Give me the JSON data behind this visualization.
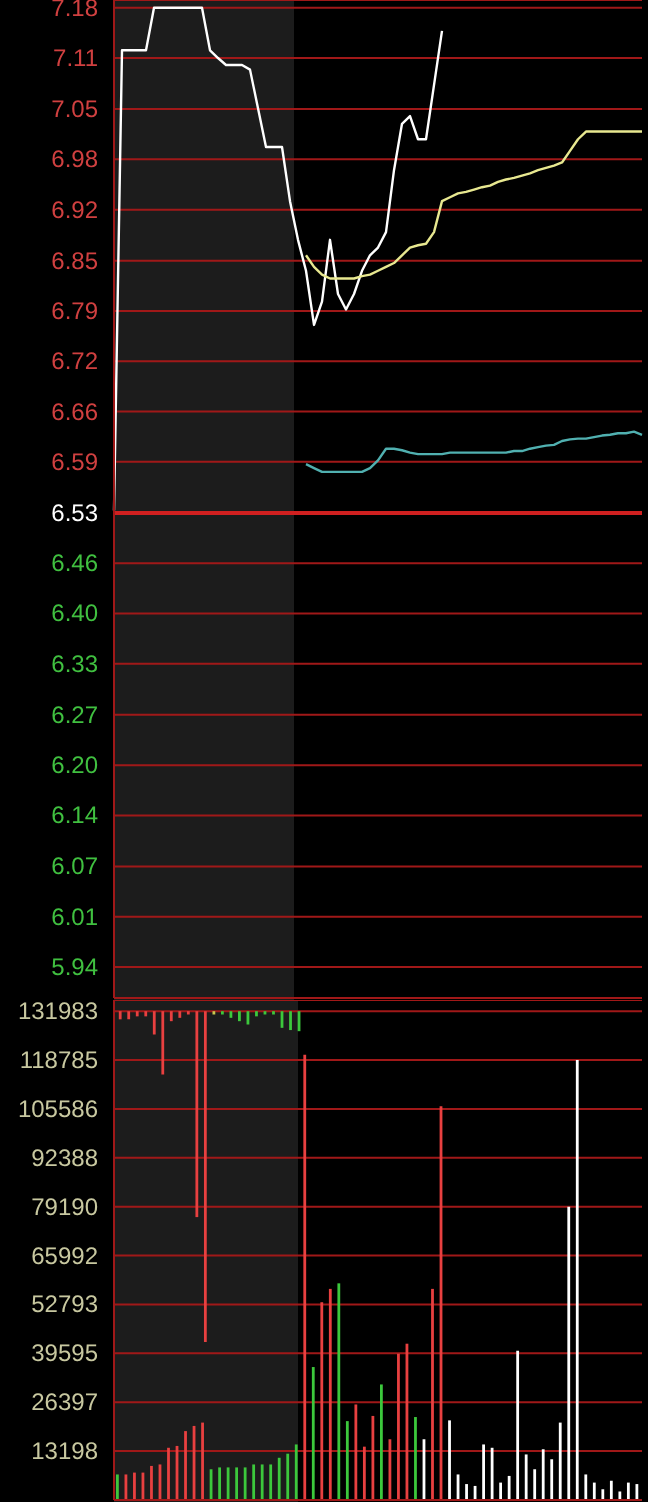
{
  "chart_data": [
    {
      "type": "line",
      "ylim": [
        5.9,
        7.19
      ],
      "grid": "y",
      "tick_labels": "y",
      "categories": [
        null,
        null,
        null,
        null,
        null,
        null,
        null,
        null,
        null,
        null,
        null,
        null,
        null,
        null,
        null,
        null,
        null,
        null,
        null,
        null,
        null,
        null,
        null,
        null,
        null,
        null,
        null,
        null,
        null,
        null,
        null,
        null,
        null,
        null,
        null,
        null,
        null,
        null,
        null,
        null,
        null,
        null,
        null,
        null,
        null,
        null,
        null,
        null,
        null,
        null,
        null,
        null,
        null,
        null,
        null,
        null,
        null,
        null,
        null,
        null,
        null,
        null,
        null,
        null,
        null,
        null,
        null
      ],
      "yticks": [
        {
          "value": 7.18,
          "label": "7.18"
        },
        {
          "value": 7.115,
          "label": "7.11"
        },
        {
          "value": 7.049,
          "label": "7.05"
        },
        {
          "value": 6.984,
          "label": "6.98"
        },
        {
          "value": 6.919,
          "label": "6.92"
        },
        {
          "value": 6.853,
          "label": "6.85"
        },
        {
          "value": 6.788,
          "label": "6.79"
        },
        {
          "value": 6.723,
          "label": "6.72"
        },
        {
          "value": 6.658,
          "label": "6.66"
        },
        {
          "value": 6.593,
          "label": "6.59"
        },
        {
          "value": 6.527,
          "label": "6.53"
        },
        {
          "value": 6.462,
          "label": "6.46"
        },
        {
          "value": 6.397,
          "label": "6.40"
        },
        {
          "value": 6.332,
          "label": "6.33"
        },
        {
          "value": 6.266,
          "label": "6.27"
        },
        {
          "value": 6.201,
          "label": "6.20"
        },
        {
          "value": 6.136,
          "label": "6.14"
        },
        {
          "value": 6.07,
          "label": "6.07"
        },
        {
          "value": 6.005,
          "label": "6.01"
        },
        {
          "value": 5.94,
          "label": "5.94"
        }
      ],
      "ref_lines": [
        {
          "axis": "y",
          "value": 6.527,
          "color": "#d02020"
        }
      ],
      "series": [
        {
          "color": "#ffffff",
          "values": [
            6.53,
            7.125,
            7.125,
            7.125,
            7.125,
            7.18,
            7.18,
            7.18,
            7.18,
            7.18,
            7.18,
            7.18,
            7.125,
            7.115,
            7.106,
            7.106,
            7.106,
            7.1,
            7.05,
            7.0,
            7.0,
            7.0,
            6.93,
            6.88,
            6.84,
            6.77,
            6.8,
            6.88,
            6.81,
            6.79,
            6.81,
            6.84,
            6.86,
            6.87,
            6.89,
            6.97,
            7.03,
            7.04,
            7.01,
            7.01,
            7.08,
            7.15,
            null,
            null,
            null,
            null,
            null,
            null,
            null,
            null,
            null,
            null,
            null,
            null,
            null,
            null,
            null,
            null,
            null,
            null,
            null,
            null,
            null,
            null,
            null,
            null,
            null
          ]
        },
        {
          "color": "#e8e890",
          "values": [
            null,
            null,
            null,
            null,
            null,
            null,
            null,
            null,
            null,
            null,
            null,
            null,
            null,
            null,
            null,
            null,
            null,
            null,
            null,
            null,
            null,
            null,
            null,
            null,
            6.86,
            6.845,
            6.835,
            6.83,
            6.83,
            6.83,
            6.83,
            6.833,
            6.835,
            6.84,
            6.845,
            6.85,
            6.86,
            6.87,
            6.873,
            6.875,
            6.89,
            6.93,
            6.935,
            6.94,
            6.942,
            6.945,
            6.948,
            6.95,
            6.955,
            6.958,
            6.96,
            6.963,
            6.966,
            6.97,
            6.973,
            6.976,
            6.98,
            6.995,
            7.01,
            7.02,
            7.02,
            7.02,
            7.02,
            7.02,
            7.02,
            7.02,
            7.02
          ]
        },
        {
          "color": "#50b0b0",
          "values": [
            null,
            null,
            null,
            null,
            null,
            null,
            null,
            null,
            null,
            null,
            null,
            null,
            null,
            null,
            null,
            null,
            null,
            null,
            null,
            null,
            null,
            null,
            null,
            null,
            6.59,
            6.585,
            6.58,
            6.58,
            6.58,
            6.58,
            6.58,
            6.58,
            6.585,
            6.595,
            6.61,
            6.61,
            6.608,
            6.605,
            6.603,
            6.603,
            6.603,
            6.603,
            6.605,
            6.605,
            6.605,
            6.605,
            6.605,
            6.605,
            6.605,
            6.605,
            6.607,
            6.607,
            6.61,
            6.612,
            6.614,
            6.615,
            6.62,
            6.622,
            6.623,
            6.623,
            6.625,
            6.627,
            6.628,
            6.63,
            6.63,
            6.632,
            6.628
          ]
        }
      ]
    },
    {
      "type": "bar",
      "ylim": [
        0,
        135000
      ],
      "grid": "y",
      "tick_labels": "y",
      "categories": [
        null,
        null,
        null,
        null,
        null,
        null,
        null,
        null,
        null,
        null,
        null,
        null,
        null,
        null,
        null,
        null,
        null,
        null,
        null,
        null,
        null,
        null,
        null,
        null,
        null,
        null,
        null,
        null,
        null,
        null,
        null,
        null,
        null,
        null,
        null,
        null,
        null,
        null,
        null,
        null,
        null,
        null,
        null,
        null,
        null,
        null,
        null,
        null,
        null,
        null,
        null,
        null,
        null,
        null,
        null,
        null,
        null,
        null,
        null,
        null,
        null,
        null
      ],
      "yticks": [
        13198,
        26397,
        39595,
        52793,
        65992,
        79190,
        92388,
        105586,
        118785,
        131983
      ],
      "series": [
        {
          "values": [
            6900,
            6900,
            7400,
            7400,
            9200,
            9600,
            14100,
            14600,
            18600,
            20000,
            20900,
            8300,
            8800,
            8800,
            8800,
            8800,
            9600,
            9600,
            9600,
            11400,
            12500,
            15000,
            120200,
            35900,
            53400,
            57000,
            58500,
            21300,
            25800,
            14400,
            22700,
            31200,
            16400,
            39500,
            42200,
            22400,
            16400,
            57000,
            106300,
            21500,
            6900,
            4300,
            3800,
            15000,
            14100,
            4700,
            6500,
            40300,
            12300,
            8300,
            13700,
            11000,
            20900,
            79200,
            118800,
            6900,
            4700,
            2900,
            5200,
            2300,
            4700,
            4300
          ],
          "colors": [
            "#3cc83c",
            "#e84040",
            "#e84040",
            "#e84040",
            "#e84040",
            "#e84040",
            "#e84040",
            "#e84040",
            "#e84040",
            "#e84040",
            "#e84040",
            "#3cc83c",
            "#3cc83c",
            "#3cc83c",
            "#3cc83c",
            "#3cc83c",
            "#3cc83c",
            "#3cc83c",
            "#3cc83c",
            "#3cc83c",
            "#3cc83c",
            "#3cc83c",
            "#e84040",
            "#3cc83c",
            "#e84040",
            "#e84040",
            "#3cc83c",
            "#3cc83c",
            "#e84040",
            "#e84040",
            "#e84040",
            "#3cc83c",
            "#e84040",
            "#e84040",
            "#e84040",
            "#3cc83c",
            "#ffffff",
            "#e84040",
            "#e84040",
            "#ffffff",
            "#ffffff",
            "#ffffff",
            "#ffffff",
            "#ffffff",
            "#ffffff",
            "#ffffff",
            "#ffffff",
            "#ffffff",
            "#ffffff",
            "#ffffff",
            "#ffffff",
            "#ffffff",
            "#ffffff",
            "#ffffff",
            "#ffffff",
            "#ffffff",
            "#ffffff",
            "#ffffff",
            "#ffffff",
            "#ffffff",
            "#ffffff",
            "#ffffff"
          ]
        },
        {
          "base": [
            131983,
            131983,
            131983,
            131983,
            131983,
            131983,
            131983,
            131983,
            131983,
            131983,
            131983,
            131983,
            131983,
            131983,
            131983,
            131983,
            131983,
            131983,
            131983,
            131983,
            131983,
            131983,
            null,
            null,
            null,
            null,
            null,
            null,
            null,
            null,
            null,
            null,
            null,
            null,
            null,
            null,
            null,
            null,
            null,
            null,
            null,
            null,
            null,
            null,
            null,
            null,
            null,
            null,
            null,
            null,
            null,
            null,
            null,
            null,
            null,
            null,
            null,
            null,
            null,
            null,
            null,
            null
          ],
          "values": [
            -2200,
            -2200,
            -1400,
            -1400,
            -6300,
            -17100,
            -2700,
            -1800,
            -900,
            -55600,
            -89300,
            -900,
            -900,
            -1800,
            -2700,
            -3600,
            -1400,
            -900,
            -900,
            -4500,
            -5100,
            -5400,
            null,
            null,
            null,
            null,
            null,
            null,
            null,
            null,
            null,
            null,
            null,
            null,
            null,
            null,
            null,
            null,
            null,
            null,
            null,
            null,
            null,
            null,
            null,
            null,
            null,
            null,
            null,
            null,
            null,
            null,
            null,
            null,
            null,
            null,
            null,
            null,
            null,
            null,
            null,
            null
          ],
          "colors": [
            "#e84040",
            "#e84040",
            "#e84040",
            "#e84040",
            "#e84040",
            "#e84040",
            "#e84040",
            "#e84040",
            "#e84040",
            "#e84040",
            "#e84040",
            "#c8c850",
            "#3cc83c",
            "#3cc83c",
            "#3cc83c",
            "#3cc83c",
            "#3cc83c",
            "#3cc83c",
            "#3cc83c",
            "#3cc83c",
            "#3cc83c",
            "#3cc83c",
            null,
            null,
            null,
            null,
            null,
            null,
            null,
            null,
            null,
            null,
            null,
            null,
            null,
            null,
            null,
            null,
            null,
            null,
            null,
            null,
            null,
            null,
            null,
            null,
            null,
            null,
            null,
            null,
            null,
            null,
            null,
            null,
            null,
            null,
            null,
            null,
            null,
            null,
            null,
            null
          ]
        }
      ]
    }
  ]
}
